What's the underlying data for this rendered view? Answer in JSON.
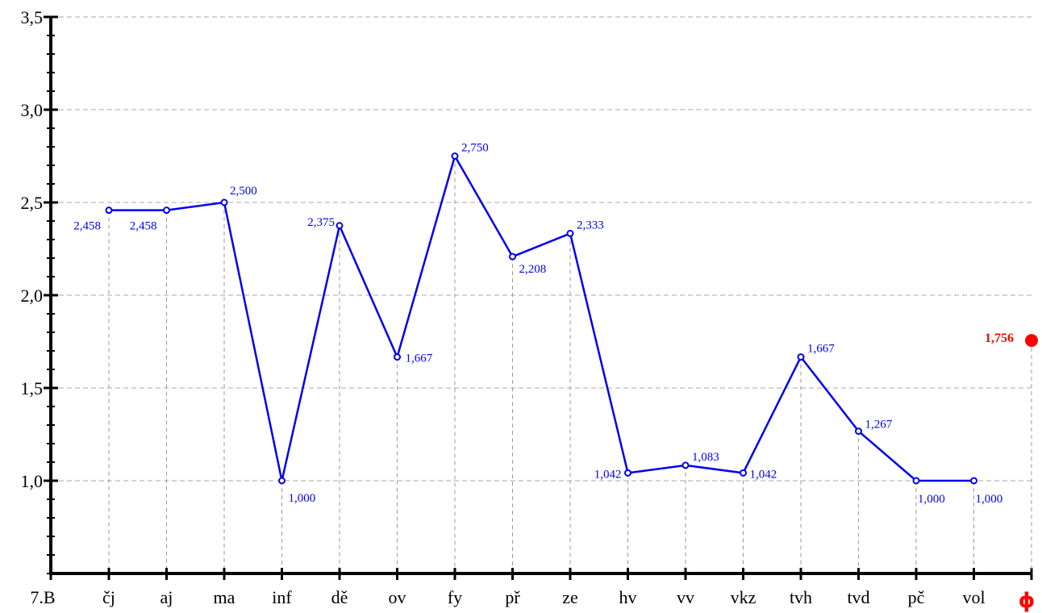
{
  "chart_data": {
    "type": "line",
    "corner_label": "7.B",
    "categories": [
      "čj",
      "aj",
      "ma",
      "inf",
      "dě",
      "ov",
      "fy",
      "př",
      "ze",
      "hv",
      "vv",
      "vkz",
      "tvh",
      "tvd",
      "pč",
      "vol"
    ],
    "values": [
      2.458,
      2.458,
      2.5,
      1.0,
      2.375,
      1.667,
      2.75,
      2.208,
      2.333,
      1.042,
      1.083,
      1.042,
      1.667,
      1.267,
      1.0,
      1.0
    ],
    "value_labels": [
      "2,458",
      "2,458",
      "2,500",
      "1,000",
      "2,375",
      "1,667",
      "2,750",
      "2,208",
      "2,333",
      "1,042",
      "1,083",
      "1,042",
      "1,667",
      "1,267",
      "1,000",
      "1,000"
    ],
    "y_ticks": [
      1.0,
      1.5,
      2.0,
      2.5,
      3.0,
      3.5
    ],
    "y_tick_labels": [
      "1,0",
      "1,5",
      "2,0",
      "2,5",
      "3,0",
      "3,5"
    ],
    "ylim": [
      0.5,
      3.5
    ],
    "grid": true,
    "average": {
      "symbol": "ϕ",
      "value": 1.756,
      "label": "1,756"
    },
    "colors": {
      "series": "#0000ee",
      "average": "#ff0000",
      "axis": "#000000",
      "grid": "#aaaaaa"
    }
  }
}
